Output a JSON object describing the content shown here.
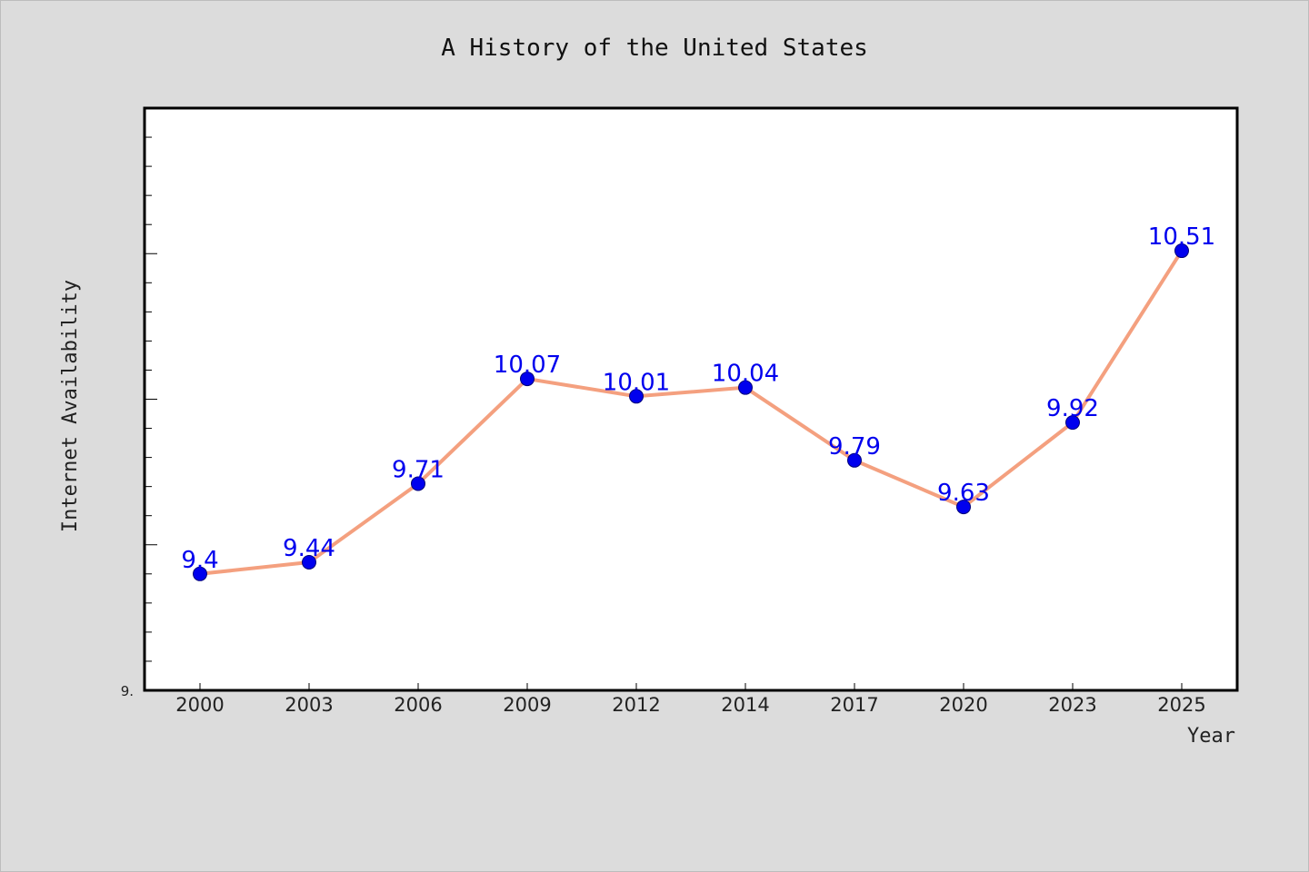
{
  "chart_data": {
    "type": "line",
    "title": "A History of the United States",
    "xlabel": "Year",
    "ylabel": "Internet Availability",
    "categories": [
      "2000",
      "2003",
      "2006",
      "2009",
      "2012",
      "2014",
      "2017",
      "2020",
      "2023",
      "2025"
    ],
    "series": [
      {
        "values": [
          9.4,
          9.44,
          9.71,
          10.07,
          10.01,
          10.04,
          9.79,
          9.63,
          9.92,
          10.51
        ]
      }
    ],
    "data_labels": [
      "9.4",
      "9.44",
      "9.71",
      "10.07",
      "10.01",
      "10.04",
      "9.79",
      "9.63",
      "9.92",
      "10.51"
    ],
    "ylim": [
      9.0,
      11.0
    ],
    "y_tick_text": "9.",
    "grid": false,
    "colors": {
      "line": "#f4a07f",
      "marker": "#0000ee",
      "label": "#0000ee",
      "plot_background": "#ffffff",
      "page_background": "#dcdcdc"
    }
  }
}
